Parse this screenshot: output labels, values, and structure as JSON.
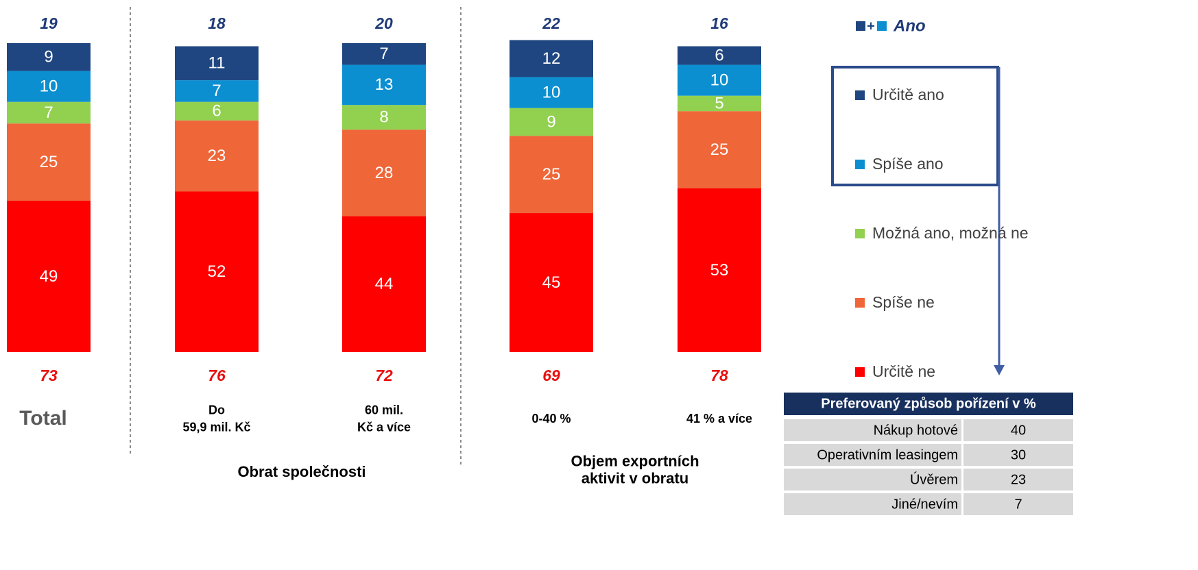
{
  "chart_data": {
    "type": "bar",
    "stacked": true,
    "categories": [
      "Total",
      "Do\n59,9 mil. Kč",
      "60 mil.\nKč a více",
      "0-40 %",
      "41 % a více"
    ],
    "series": [
      {
        "name": "Určitě ano",
        "color": "#1f4680",
        "values": [
          9,
          11,
          7,
          12,
          6
        ]
      },
      {
        "name": "Spíše ano",
        "color": "#0b8fd1",
        "values": [
          10,
          7,
          13,
          10,
          10
        ]
      },
      {
        "name": "Možná ano, možná ne",
        "color": "#92d050",
        "values": [
          7,
          6,
          8,
          9,
          5
        ]
      },
      {
        "name": "Spíše ne",
        "color": "#ef6639",
        "values": [
          25,
          23,
          28,
          25,
          25
        ]
      },
      {
        "name": "Určitě ne",
        "color": "#ff0000",
        "values": [
          49,
          52,
          44,
          45,
          53
        ]
      }
    ],
    "ano_total": {
      "name": "Ano",
      "symbol": "+",
      "color": "#1f3a78",
      "values": [
        19,
        18,
        20,
        22,
        16
      ]
    },
    "ne_total": {
      "color": "#e8100f",
      "values": [
        73,
        76,
        72,
        69,
        78
      ]
    },
    "groups": [
      "Obrat společnosti",
      "Objem exportních\naktivit v obratu"
    ],
    "table": {
      "header": "Preferovaný způsob pořízení v %",
      "rows": [
        [
          "Nákup hotové",
          40
        ],
        [
          "Operativním leasingem",
          30
        ],
        [
          "Úvěrem",
          23
        ],
        [
          "Jiné/nevím",
          7
        ]
      ]
    }
  }
}
